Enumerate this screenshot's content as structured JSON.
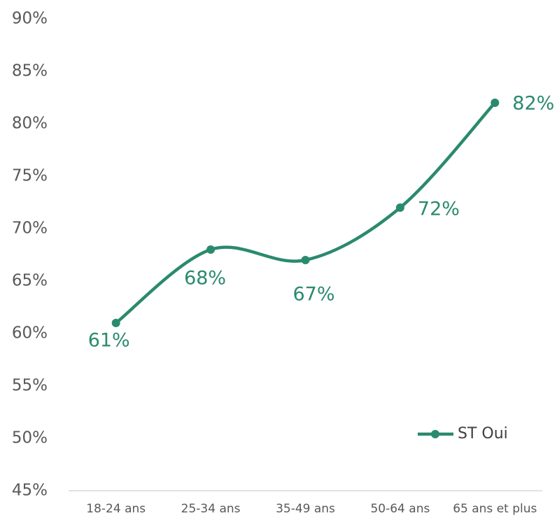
{
  "chart_data": {
    "type": "line",
    "categories": [
      "18-24 ans",
      "25-34 ans",
      "35-49 ans",
      "50-64 ans",
      "65 ans et plus"
    ],
    "series": [
      {
        "name": "ST Oui",
        "color": "#2a8a6e",
        "values": [
          61,
          68,
          67,
          72,
          82
        ],
        "value_labels": [
          "61%",
          "68%",
          "67%",
          "72%",
          "82%"
        ]
      }
    ],
    "ylim": [
      45,
      90
    ],
    "yticks": [
      {
        "value": 45,
        "label": "45%"
      },
      {
        "value": 50,
        "label": "50%"
      },
      {
        "value": 55,
        "label": "55%"
      },
      {
        "value": 60,
        "label": "60%"
      },
      {
        "value": 65,
        "label": "65%"
      },
      {
        "value": 70,
        "label": "70%"
      },
      {
        "value": 75,
        "label": "75%"
      },
      {
        "value": 80,
        "label": "80%"
      },
      {
        "value": 85,
        "label": "85%"
      },
      {
        "value": 90,
        "label": "90%"
      }
    ],
    "smooth": true,
    "grid": false,
    "legend": "lower right"
  }
}
